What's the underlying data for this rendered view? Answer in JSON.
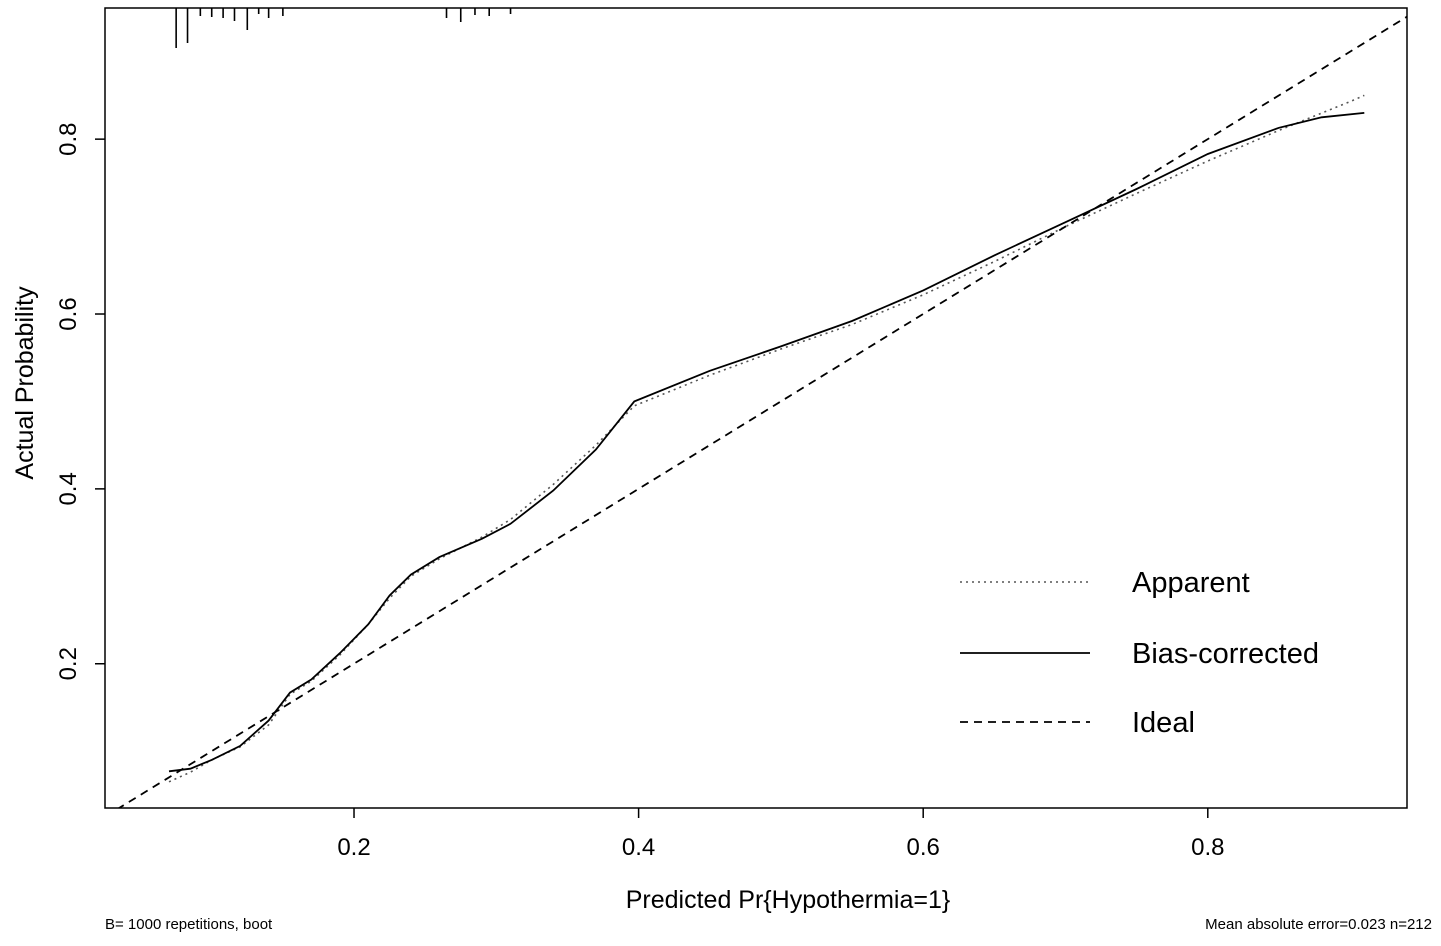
{
  "chart_data": {
    "type": "line",
    "title": "",
    "xlabel": "Predicted Pr{Hypothermia=1}",
    "ylabel": "Actual Probability",
    "xlim": [
      0.025,
      0.94
    ],
    "ylim": [
      0.035,
      0.95
    ],
    "xticks": [
      0.2,
      0.4,
      0.6,
      0.8
    ],
    "xtick_labels": [
      "0.2",
      "0.4",
      "0.6",
      "0.8"
    ],
    "yticks": [
      0.2,
      0.4,
      0.6,
      0.8
    ],
    "ytick_labels": [
      "0.2",
      "0.4",
      "0.6",
      "0.8"
    ],
    "grid": false,
    "legend_position": "bottom-right",
    "series": [
      {
        "name": "Apparent",
        "style": "dotted",
        "color": "#555555",
        "x": [
          0.07,
          0.085,
          0.1,
          0.12,
          0.14,
          0.155,
          0.17,
          0.19,
          0.21,
          0.225,
          0.24,
          0.26,
          0.29,
          0.31,
          0.34,
          0.37,
          0.397,
          0.45,
          0.5,
          0.55,
          0.6,
          0.65,
          0.7,
          0.75,
          0.8,
          0.85,
          0.9,
          0.91
        ],
        "y": [
          0.065,
          0.076,
          0.09,
          0.105,
          0.13,
          0.165,
          0.18,
          0.21,
          0.245,
          0.275,
          0.3,
          0.32,
          0.345,
          0.365,
          0.405,
          0.45,
          0.495,
          0.53,
          0.56,
          0.588,
          0.622,
          0.66,
          0.7,
          0.738,
          0.775,
          0.81,
          0.843,
          0.85
        ]
      },
      {
        "name": "Bias-corrected",
        "style": "solid",
        "color": "#000000",
        "x": [
          0.07,
          0.085,
          0.1,
          0.12,
          0.14,
          0.155,
          0.17,
          0.19,
          0.21,
          0.225,
          0.24,
          0.26,
          0.29,
          0.31,
          0.34,
          0.37,
          0.397,
          0.45,
          0.5,
          0.55,
          0.6,
          0.65,
          0.7,
          0.75,
          0.8,
          0.85,
          0.88,
          0.91
        ],
        "y": [
          0.077,
          0.08,
          0.09,
          0.106,
          0.135,
          0.167,
          0.182,
          0.212,
          0.245,
          0.278,
          0.302,
          0.322,
          0.343,
          0.36,
          0.398,
          0.445,
          0.5,
          0.535,
          0.563,
          0.592,
          0.627,
          0.667,
          0.705,
          0.743,
          0.783,
          0.813,
          0.825,
          0.83
        ]
      },
      {
        "name": "Ideal",
        "style": "dashed",
        "color": "#000000",
        "x": [
          0.025,
          0.94
        ],
        "y": [
          0.025,
          0.94
        ]
      }
    ],
    "rug": {
      "x": [
        0.075,
        0.083,
        0.092,
        0.1,
        0.108,
        0.116,
        0.125,
        0.133,
        0.14,
        0.15,
        0.265,
        0.275,
        0.285,
        0.295,
        0.31
      ],
      "lengths": [
        40,
        35,
        8,
        9,
        10,
        13,
        22,
        6,
        10,
        8,
        10,
        14,
        7,
        8,
        6
      ]
    },
    "footnotes": {
      "left": "B= 1000 repetitions, boot",
      "right": "Mean absolute error=0.023 n=212"
    }
  }
}
